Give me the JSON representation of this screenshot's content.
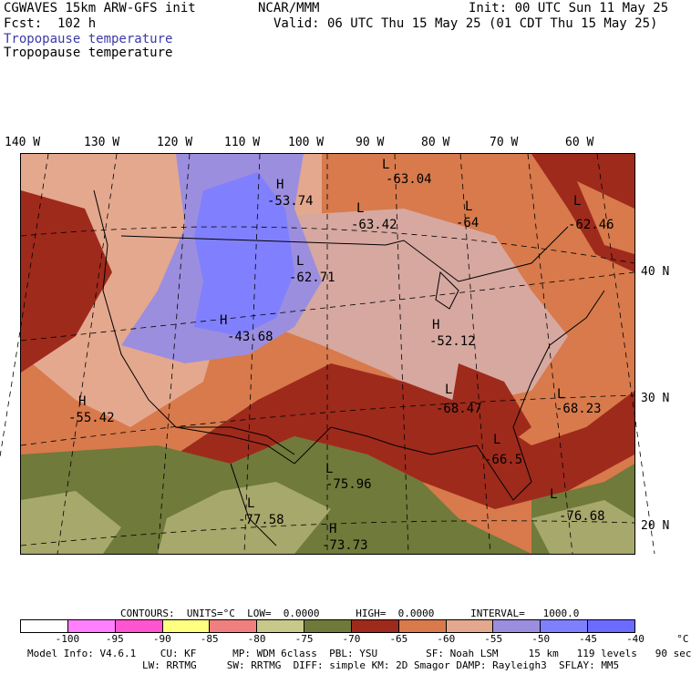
{
  "header": {
    "model": "CGWAVES 15km ARW-GFS init",
    "fcst": "Fcst:  102 h",
    "org": "NCAR/MMM",
    "init": "Init: 00 UTC Sun 11 May 25",
    "valid": "Valid: 06 UTC Thu 15 May 25 (01 CDT Thu 15 May 25)",
    "field1": "Tropopause temperature",
    "field2": "Tropopause temperature"
  },
  "axes": {
    "lon_labels": [
      "140 W",
      "130 W",
      "120 W",
      "110 W",
      "100 W",
      "90 W",
      "80 W",
      "70 W",
      "60 W"
    ],
    "lat_labels": [
      "40 N",
      "30 N",
      "20 N"
    ]
  },
  "map": {
    "colors": {
      "c_95": "#ff7fff",
      "c_90": "#ffff80",
      "c_85": "#f08080",
      "c_80": "#c8c88a",
      "c_75": "#a6a86c",
      "c_70": "#707a3a",
      "c_65": "#9e2a1c",
      "c_60": "#d87a4c",
      "c_55": "#e4a88e",
      "c_50": "#d6a8a0",
      "c_45": "#9c8ede",
      "c_40": "#8080ff"
    },
    "labels": [
      {
        "type": "L",
        "value": "-63.04"
      },
      {
        "type": "H",
        "value": "-53.74"
      },
      {
        "type": "L",
        "value": "-63.42"
      },
      {
        "type": "L",
        "value": "-64"
      },
      {
        "type": "L",
        "value": "-62.71"
      },
      {
        "type": "H",
        "value": "-43.68"
      },
      {
        "type": "H",
        "value": "-52.12"
      },
      {
        "type": "H",
        "value": "-55.42"
      },
      {
        "type": "L",
        "value": "-68.47"
      },
      {
        "type": "L",
        "value": "-68.23"
      },
      {
        "type": "L",
        "value": "-66.5"
      },
      {
        "type": "L",
        "value": "-75.96"
      },
      {
        "type": "L",
        "value": "-77.58"
      },
      {
        "type": "H",
        "value": "-73.73"
      },
      {
        "type": "L",
        "value": "-76.68"
      },
      {
        "type": "L",
        "value": "-62.46"
      }
    ]
  },
  "contours": {
    "line": "CONTOURS:  UNITS=°C  LOW=  0.0000      HIGH=  0.0000      INTERVAL=   1000.0"
  },
  "legend": {
    "colors": [
      "#ffffff",
      "#ff80ff",
      "#ff55d0",
      "#ffff80",
      "#f08080",
      "#c8c88a",
      "#6f7a3a",
      "#9e2a1c",
      "#d87a4c",
      "#e4a88e",
      "#9c8ede",
      "#8080ff",
      "#6b6bff"
    ],
    "labels": [
      "-100",
      "-95",
      "-90",
      "-85",
      "-80",
      "-75",
      "-70",
      "-65",
      "-60",
      "-55",
      "-50",
      "-45",
      "-40",
      "°C"
    ]
  },
  "footer": {
    "line1": "Model Info: V4.6.1    CU: KF      MP: WDM 6class  PBL: YSU        SF: Noah LSM     15 km   119 levels   90 sec",
    "line2": "LW: RRTMG     SW: RRTMG  DIFF: simple KM: 2D Smagor DAMP: Rayleigh3  SFLAY: MM5"
  }
}
